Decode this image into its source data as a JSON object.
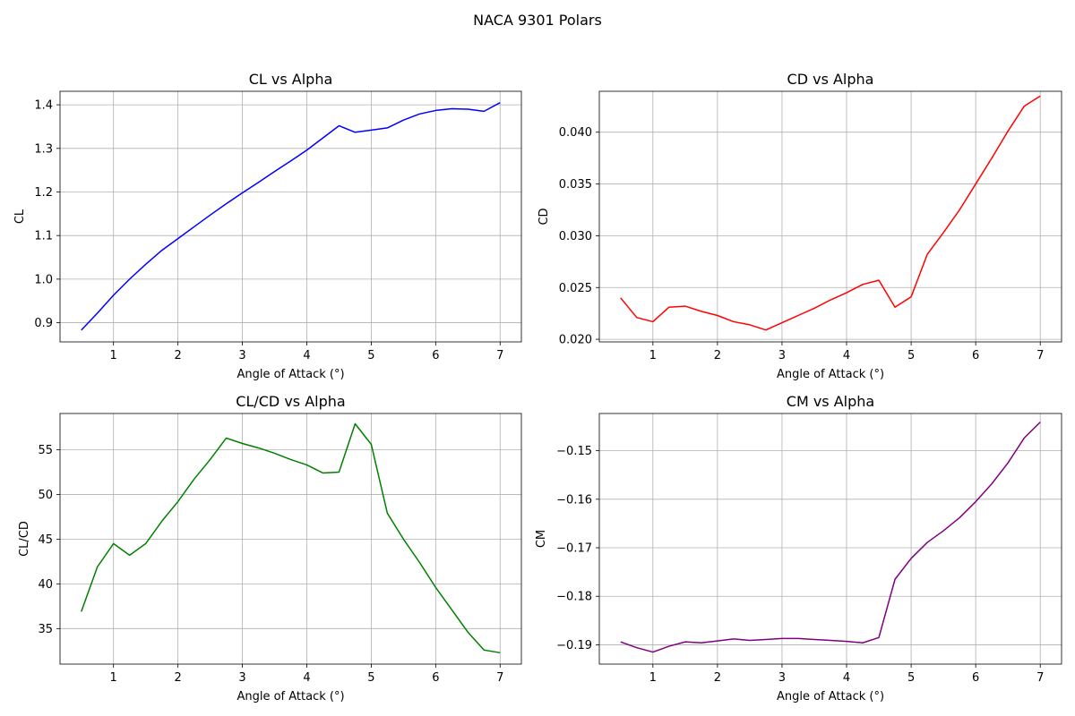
{
  "figure": {
    "title": "NACA 9301 Polars"
  },
  "chart_data": [
    {
      "type": "line",
      "title": "CL vs Alpha",
      "xlabel": "Angle of Attack (°)",
      "ylabel": "CL",
      "xlim": [
        0.17,
        7.33
      ],
      "ylim": [
        0.856,
        1.431
      ],
      "xticks": [
        1,
        2,
        3,
        4,
        5,
        6,
        7
      ],
      "yticks": [
        0.9,
        1.0,
        1.1,
        1.2,
        1.3,
        1.4
      ],
      "ytick_labels": [
        "0.9",
        "1.0",
        "1.1",
        "1.2",
        "1.3",
        "1.4"
      ],
      "grid": true,
      "color": "#0000ff",
      "series": [
        {
          "x": [
            0.5,
            0.75,
            1.0,
            1.25,
            1.5,
            1.75,
            2.0,
            2.25,
            2.5,
            2.75,
            3.0,
            3.25,
            3.5,
            3.75,
            4.0,
            4.25,
            4.5,
            4.75,
            5.0,
            5.25,
            5.5,
            5.75,
            6.0,
            6.25,
            6.5,
            6.75,
            7.0
          ],
          "y": [
            0.883,
            0.922,
            0.963,
            1.0,
            1.034,
            1.066,
            1.093,
            1.12,
            1.147,
            1.173,
            1.198,
            1.222,
            1.247,
            1.271,
            1.296,
            1.324,
            1.352,
            1.337,
            1.342,
            1.347,
            1.365,
            1.379,
            1.387,
            1.391,
            1.39,
            1.385,
            1.405
          ]
        }
      ]
    },
    {
      "type": "line",
      "title": "CD vs Alpha",
      "xlabel": "Angle of Attack (°)",
      "ylabel": "CD",
      "xlim": [
        0.17,
        7.33
      ],
      "ylim": [
        0.01975,
        0.04395
      ],
      "xticks": [
        1,
        2,
        3,
        4,
        5,
        6,
        7
      ],
      "yticks": [
        0.02,
        0.025,
        0.03,
        0.035,
        0.04
      ],
      "ytick_labels": [
        "0.020",
        "0.025",
        "0.030",
        "0.035",
        "0.040"
      ],
      "grid": true,
      "color": "#ff0000",
      "series": [
        {
          "x": [
            0.5,
            0.75,
            1.0,
            1.25,
            1.5,
            1.75,
            2.0,
            2.25,
            2.5,
            2.75,
            3.0,
            3.25,
            3.5,
            3.75,
            4.0,
            4.25,
            4.5,
            4.75,
            5.0,
            5.25,
            5.5,
            5.75,
            6.0,
            6.25,
            6.5,
            6.75,
            7.0
          ],
          "y": [
            0.024,
            0.0221,
            0.0217,
            0.0231,
            0.0232,
            0.0227,
            0.0223,
            0.0217,
            0.0214,
            0.0209,
            0.0216,
            0.0223,
            0.023,
            0.0238,
            0.0245,
            0.0253,
            0.0257,
            0.0231,
            0.0241,
            0.0282,
            0.0303,
            0.0325,
            0.035,
            0.0375,
            0.0401,
            0.0425,
            0.0435
          ]
        }
      ]
    },
    {
      "type": "line",
      "title": "CL/CD vs Alpha",
      "xlabel": "Angle of Attack (°)",
      "ylabel": "CL/CD",
      "xlim": [
        0.17,
        7.33
      ],
      "ylim": [
        31.03,
        59.05
      ],
      "xticks": [
        1,
        2,
        3,
        4,
        5,
        6,
        7
      ],
      "yticks": [
        35,
        40,
        45,
        50,
        55
      ],
      "ytick_labels": [
        "35",
        "40",
        "45",
        "50",
        "55"
      ],
      "grid": true,
      "color": "#008000",
      "series": [
        {
          "x": [
            0.5,
            0.75,
            1.0,
            1.25,
            1.5,
            1.75,
            2.0,
            2.25,
            2.5,
            2.75,
            3.0,
            3.25,
            3.5,
            3.75,
            4.0,
            4.25,
            4.5,
            4.75,
            5.0,
            5.25,
            5.5,
            5.75,
            6.0,
            6.25,
            6.5,
            6.75,
            7.0
          ],
          "y": [
            36.9,
            41.9,
            44.5,
            43.2,
            44.5,
            47.0,
            49.2,
            51.7,
            53.9,
            56.3,
            55.7,
            55.2,
            54.6,
            53.9,
            53.3,
            52.4,
            52.5,
            57.9,
            55.6,
            47.9,
            45.0,
            42.4,
            39.6,
            37.1,
            34.6,
            32.6,
            32.3
          ]
        }
      ]
    },
    {
      "type": "line",
      "title": "CM vs Alpha",
      "xlabel": "Angle of Attack (°)",
      "ylabel": "CM",
      "xlim": [
        0.17,
        7.33
      ],
      "ylim": [
        -0.19398,
        -0.14232
      ],
      "xticks": [
        1,
        2,
        3,
        4,
        5,
        6,
        7
      ],
      "yticks": [
        -0.19,
        -0.18,
        -0.17,
        -0.16,
        -0.15
      ],
      "ytick_labels": [
        "−0.19",
        "−0.18",
        "−0.17",
        "−0.16",
        "−0.15"
      ],
      "grid": true,
      "color": "#800080",
      "series": [
        {
          "x": [
            0.5,
            0.75,
            1.0,
            1.25,
            1.5,
            1.75,
            2.0,
            2.25,
            2.5,
            2.75,
            3.0,
            3.25,
            3.5,
            3.75,
            4.0,
            4.25,
            4.5,
            4.75,
            5.0,
            5.25,
            5.5,
            5.75,
            6.0,
            6.25,
            6.5,
            6.75,
            7.0
          ],
          "y": [
            -0.1894,
            -0.1906,
            -0.1915,
            -0.1903,
            -0.1894,
            -0.1896,
            -0.1892,
            -0.1888,
            -0.1891,
            -0.1889,
            -0.1887,
            -0.1887,
            -0.1889,
            -0.1891,
            -0.1893,
            -0.1896,
            -0.1885,
            -0.1765,
            -0.1722,
            -0.1689,
            -0.1665,
            -0.1638,
            -0.1605,
            -0.1568,
            -0.1525,
            -0.1474,
            -0.1441
          ]
        }
      ]
    }
  ]
}
